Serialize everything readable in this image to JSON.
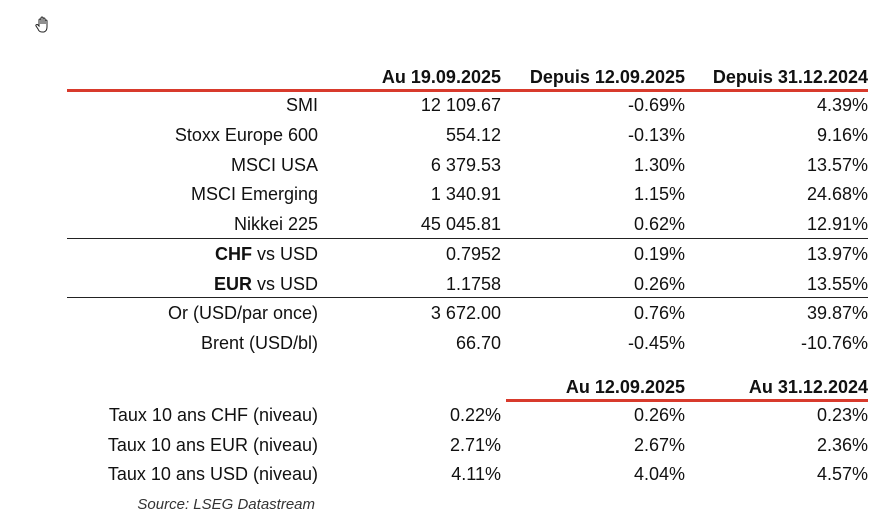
{
  "headers": {
    "col1": "Au 19.09.2025",
    "col2": "Depuis 12.09.2025",
    "col3": "Depuis 31.12.2024"
  },
  "rows_indices": [
    {
      "label": "SMI",
      "c1": "12 109.67",
      "c2": "-0.69%",
      "c3": "4.39%"
    },
    {
      "label": "Stoxx Europe 600",
      "c1": "554.12",
      "c2": "-0.13%",
      "c3": "9.16%"
    },
    {
      "label": "MSCI USA",
      "c1": "6 379.53",
      "c2": "1.30%",
      "c3": "13.57%"
    },
    {
      "label": "MSCI Emerging",
      "c1": "1 340.91",
      "c2": "1.15%",
      "c3": "24.68%"
    },
    {
      "label": "Nikkei 225",
      "c1": "45 045.81",
      "c2": "0.62%",
      "c3": "12.91%"
    }
  ],
  "rows_fx": [
    {
      "label_bold": "CHF",
      "label_rest": " vs USD",
      "c1": "0.7952",
      "c2": "0.19%",
      "c3": "13.97%"
    },
    {
      "label_bold": "EUR",
      "label_rest": " vs USD",
      "c1": "1.1758",
      "c2": "0.26%",
      "c3": "13.55%"
    }
  ],
  "rows_commod": [
    {
      "label": "Or (USD/par once)",
      "c1": "3 672.00",
      "c2": "0.76%",
      "c3": "39.87%"
    },
    {
      "label": "Brent (USD/bl)",
      "c1": "66.70",
      "c2": "-0.45%",
      "c3": "-10.76%"
    }
  ],
  "headers2": {
    "col2": "Au 12.09.2025",
    "col3": "Au 31.12.2024"
  },
  "rows_rates": [
    {
      "label": "Taux 10 ans CHF (niveau)",
      "c1": "0.22%",
      "c2": "0.26%",
      "c3": "0.23%"
    },
    {
      "label": "Taux 10 ans EUR (niveau)",
      "c1": "2.71%",
      "c2": "2.67%",
      "c3": "2.36%"
    },
    {
      "label": "Taux 10 ans USD (niveau)",
      "c1": "4.11%",
      "c2": "4.04%",
      "c3": "4.57%"
    }
  ],
  "source": "Source: LSEG Datastream",
  "icons": {
    "cursor": "hand-cursor-icon"
  },
  "colors": {
    "accent_line": "#d83a2c"
  }
}
